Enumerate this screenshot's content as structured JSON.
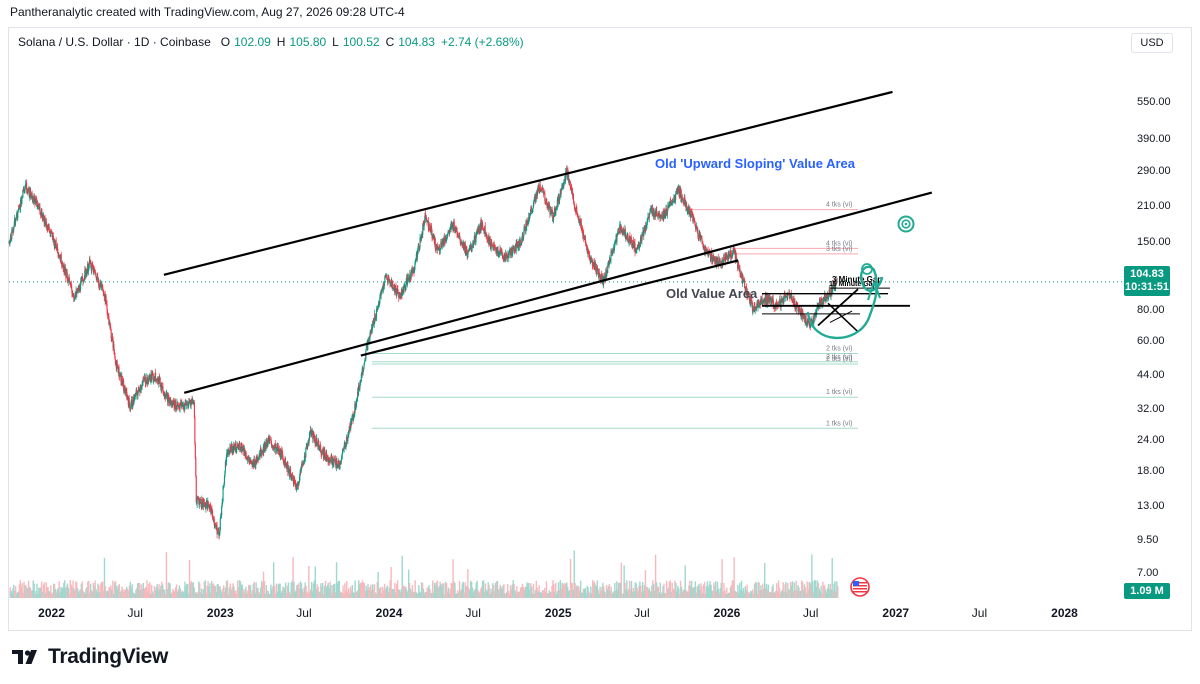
{
  "header": {
    "credit": "Pantheranalytic created with TradingView.com, Aug 27, 2026 09:28 UTC-4"
  },
  "legend": {
    "symbol": "Solana / U.S. Dollar · 1D · Coinbase",
    "o_label": "O",
    "o": "102.09",
    "h_label": "H",
    "h": "105.80",
    "l_label": "L",
    "l": "100.52",
    "c_label": "C",
    "c": "104.83",
    "change": "+2.74 (+2.68%)"
  },
  "currency": "USD",
  "current_price": {
    "price": "104.83",
    "countdown": "10:31:51"
  },
  "volume_tag": "1.09 M",
  "brand": "TradingView",
  "colors": {
    "up": "#089981",
    "down": "#f23645",
    "accent_text": "#2962ff",
    "annotation_green": "#22ab94"
  },
  "chart_data": {
    "type": "candlestick",
    "y_scale": "log",
    "ylim": [
      5.6,
      820
    ],
    "xlim": [
      "2021-10-01",
      "2028-04-30"
    ],
    "y_ticks": [
      "550.00",
      "390.00",
      "290.00",
      "210.00",
      "150.00",
      "80.00",
      "60.00",
      "44.00",
      "32.00",
      "24.00",
      "18.00",
      "13.00",
      "9.50",
      "7.00"
    ],
    "x_ticks": [
      {
        "label": "2022",
        "date": "2022-01-01",
        "bold": true
      },
      {
        "label": "Jul",
        "date": "2022-07-01",
        "bold": false
      },
      {
        "label": "2023",
        "date": "2023-01-01",
        "bold": true
      },
      {
        "label": "Jul",
        "date": "2023-07-01",
        "bold": false
      },
      {
        "label": "2024",
        "date": "2024-01-01",
        "bold": true
      },
      {
        "label": "Jul",
        "date": "2024-07-01",
        "bold": false
      },
      {
        "label": "2025",
        "date": "2025-01-01",
        "bold": true
      },
      {
        "label": "Jul",
        "date": "2025-07-01",
        "bold": false
      },
      {
        "label": "2026",
        "date": "2026-01-01",
        "bold": true
      },
      {
        "label": "Jul",
        "date": "2026-07-01",
        "bold": false
      },
      {
        "label": "2027",
        "date": "2027-01-01",
        "bold": true
      },
      {
        "label": "Jul",
        "date": "2027-07-01",
        "bold": false
      },
      {
        "label": "2028",
        "date": "2028-01-01",
        "bold": true
      }
    ],
    "price_path": [
      [
        "2021-10-01",
        150
      ],
      [
        "2021-11-05",
        255
      ],
      [
        "2021-12-10",
        200
      ],
      [
        "2022-01-15",
        140
      ],
      [
        "2022-02-20",
        90
      ],
      [
        "2022-03-25",
        125
      ],
      [
        "2022-04-25",
        95
      ],
      [
        "2022-05-20",
        50
      ],
      [
        "2022-06-20",
        33
      ],
      [
        "2022-07-20",
        42
      ],
      [
        "2022-08-15",
        44
      ],
      [
        "2022-09-15",
        34
      ],
      [
        "2022-10-15",
        33
      ],
      [
        "2022-11-05",
        35
      ],
      [
        "2022-11-10",
        14
      ],
      [
        "2022-12-10",
        13
      ],
      [
        "2022-12-29",
        9.9
      ],
      [
        "2023-01-15",
        22
      ],
      [
        "2023-02-15",
        23
      ],
      [
        "2023-03-10",
        19
      ],
      [
        "2023-04-15",
        24
      ],
      [
        "2023-05-15",
        21
      ],
      [
        "2023-06-15",
        15.5
      ],
      [
        "2023-07-15",
        26
      ],
      [
        "2023-08-15",
        21
      ],
      [
        "2023-09-15",
        19
      ],
      [
        "2023-10-15",
        30
      ],
      [
        "2023-11-15",
        58
      ],
      [
        "2023-12-25",
        110
      ],
      [
        "2024-01-25",
        92
      ],
      [
        "2024-02-25",
        120
      ],
      [
        "2024-03-20",
        195
      ],
      [
        "2024-04-15",
        140
      ],
      [
        "2024-05-20",
        178
      ],
      [
        "2024-06-20",
        135
      ],
      [
        "2024-07-20",
        180
      ],
      [
        "2024-08-10",
        145
      ],
      [
        "2024-09-10",
        132
      ],
      [
        "2024-10-10",
        150
      ],
      [
        "2024-11-22",
        255
      ],
      [
        "2024-12-20",
        190
      ],
      [
        "2025-01-19",
        290
      ],
      [
        "2025-02-10",
        200
      ],
      [
        "2025-03-10",
        130
      ],
      [
        "2025-04-08",
        105
      ],
      [
        "2025-05-15",
        175
      ],
      [
        "2025-06-20",
        140
      ],
      [
        "2025-07-20",
        200
      ],
      [
        "2025-08-20",
        195
      ],
      [
        "2025-09-18",
        245
      ],
      [
        "2025-10-15",
        195
      ],
      [
        "2025-11-15",
        140
      ],
      [
        "2025-12-15",
        125
      ],
      [
        "2026-01-15",
        140
      ],
      [
        "2026-02-05",
        105
      ],
      [
        "2026-02-25",
        82
      ],
      [
        "2026-03-25",
        90
      ],
      [
        "2026-04-20",
        84
      ],
      [
        "2026-05-15",
        93
      ],
      [
        "2026-06-10",
        78
      ],
      [
        "2026-07-01",
        70
      ],
      [
        "2026-07-20",
        86
      ],
      [
        "2026-08-10",
        94
      ],
      [
        "2026-08-27",
        104.83
      ]
    ],
    "ticks_labels": [
      {
        "price": 205,
        "text": "4 tks (vi)"
      },
      {
        "price": 143,
        "text": "4 tks (vi)"
      },
      {
        "price": 136,
        "text": "3 tks (vi)"
      },
      {
        "price": 54,
        "text": "2 tks (vi)"
      },
      {
        "price": 50,
        "text": "2 tks (vi)"
      },
      {
        "price": 49,
        "text": "2 tks (vi)"
      },
      {
        "price": 36,
        "text": "1 tks (vi)"
      },
      {
        "price": 27,
        "text": "1 tks (vi)"
      }
    ],
    "annotations": {
      "upper_value_area": "Old 'Upward Sloping' Value Area",
      "lower_value_area": "Old Value Area",
      "gap_1": "3 Minute Gap",
      "gap_2": "15 Minute Gap"
    }
  }
}
